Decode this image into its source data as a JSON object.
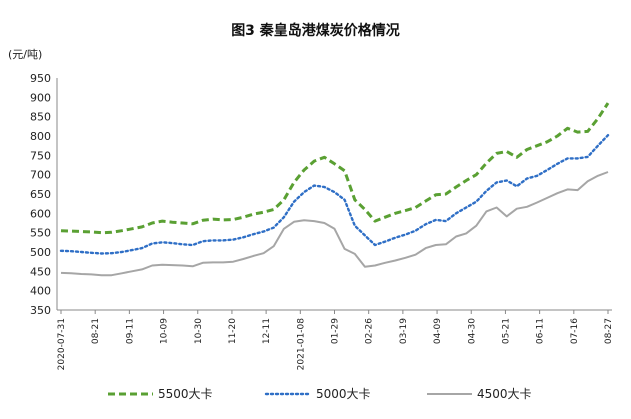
{
  "chart_data": {
    "type": "line",
    "title": "图3  秦皇岛港煤炭价格情况",
    "unit_label": "(元/吨)",
    "xlabel": "",
    "ylabel": "",
    "ylim": [
      350,
      950
    ],
    "y_ticks": [
      350,
      400,
      450,
      500,
      550,
      600,
      650,
      700,
      750,
      800,
      850,
      900,
      950
    ],
    "grid": false,
    "legend_position": "bottom",
    "x_tick_labels": [
      "2020-07-31",
      "08-21",
      "09-11",
      "10-09",
      "10-30",
      "11-20",
      "12-11",
      "2021-01-08",
      "01-29",
      "02-26",
      "03-19",
      "04-09",
      "04-30",
      "05-21",
      "06-11",
      "07-16",
      "08-27"
    ],
    "series": [
      {
        "name": "5500大卡",
        "color": "#5aa033",
        "style": "dashed",
        "values": [
          555,
          554,
          553,
          552,
          550,
          551,
          555,
          560,
          565,
          575,
          580,
          577,
          575,
          573,
          582,
          585,
          583,
          584,
          590,
          598,
          603,
          610,
          635,
          680,
          712,
          735,
          745,
          728,
          710,
          635,
          610,
          580,
          590,
          600,
          607,
          615,
          632,
          648,
          650,
          668,
          685,
          700,
          730,
          755,
          760,
          745,
          765,
          775,
          785,
          800,
          820,
          810,
          812,
          845,
          885
        ]
      },
      {
        "name": "5000大卡",
        "color": "#2f6fc6",
        "style": "dotted",
        "values": [
          503,
          502,
          500,
          498,
          496,
          497,
          500,
          505,
          510,
          522,
          525,
          523,
          520,
          518,
          528,
          530,
          530,
          532,
          538,
          546,
          553,
          563,
          590,
          630,
          655,
          672,
          668,
          655,
          635,
          568,
          543,
          518,
          527,
          537,
          545,
          555,
          572,
          583,
          580,
          600,
          615,
          630,
          658,
          680,
          685,
          670,
          690,
          697,
          712,
          728,
          742,
          742,
          746,
          775,
          802
        ]
      },
      {
        "name": "4500大卡",
        "color": "#a6a6a6",
        "style": "solid",
        "values": [
          446,
          445,
          443,
          442,
          440,
          440,
          445,
          450,
          455,
          465,
          467,
          466,
          465,
          463,
          472,
          473,
          473,
          475,
          482,
          490,
          497,
          515,
          560,
          578,
          582,
          580,
          575,
          560,
          508,
          495,
          462,
          465,
          472,
          478,
          485,
          493,
          510,
          518,
          520,
          540,
          548,
          568,
          605,
          615,
          592,
          612,
          617,
          628,
          640,
          652,
          662,
          660,
          683,
          697,
          707
        ]
      }
    ]
  }
}
